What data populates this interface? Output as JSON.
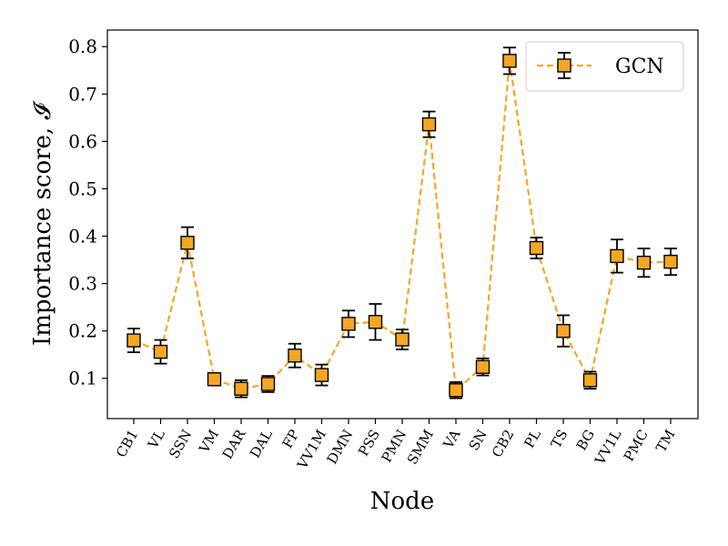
{
  "chart_data": {
    "type": "line",
    "xlabel": "Node",
    "ylabel": "Importance score, 𝓘",
    "ylim": [
      0.015,
      0.835
    ],
    "yticks": [
      "0.1",
      "0.2",
      "0.3",
      "0.4",
      "0.5",
      "0.6",
      "0.7",
      "0.8"
    ],
    "grid": false,
    "legend_position": "top-right",
    "categories": [
      "CB1",
      "VL",
      "SSN",
      "VM",
      "DAR",
      "DAL",
      "FP",
      "VV1M",
      "DMN",
      "PSS",
      "PMN",
      "SMM",
      "VA",
      "SN",
      "CB2",
      "PL",
      "TS",
      "BG",
      "VV1L",
      "PMC",
      "TM"
    ],
    "series": [
      {
        "name": "GCN",
        "color": "#f5a623",
        "marker": "square",
        "line_style": "dashed",
        "values": [
          0.18,
          0.156,
          0.386,
          0.098,
          0.078,
          0.088,
          0.148,
          0.107,
          0.215,
          0.219,
          0.182,
          0.636,
          0.075,
          0.124,
          0.77,
          0.375,
          0.2,
          0.096,
          0.358,
          0.344,
          0.346
        ],
        "error": [
          0.025,
          0.025,
          0.033,
          0.013,
          0.018,
          0.017,
          0.025,
          0.022,
          0.028,
          0.038,
          0.021,
          0.027,
          0.017,
          0.018,
          0.028,
          0.022,
          0.033,
          0.018,
          0.035,
          0.03,
          0.028
        ]
      }
    ]
  }
}
